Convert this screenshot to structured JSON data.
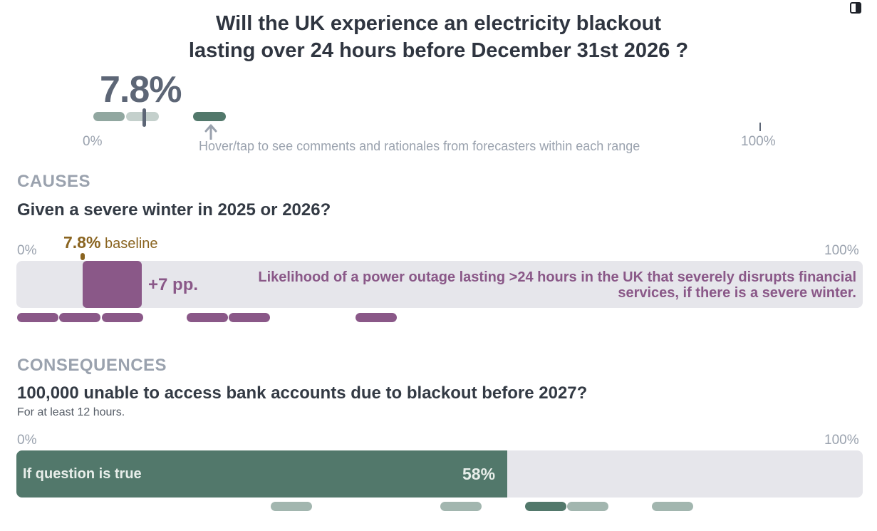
{
  "header": {
    "title_line1": "Will the UK experience an electricity blackout",
    "title_line2": "lasting over 24 hours before December 31st 2026 ?"
  },
  "forecast": {
    "probability_label": "7.8%",
    "probability": 0.078,
    "axis_min": "0%",
    "axis_max": "100%",
    "hint": "Hover/tap to see comments and rationales from forecasters within each range"
  },
  "causes": {
    "section_title": "CAUSES",
    "question": "Given a severe winter in 2025 or 2026?",
    "axis_min": "0%",
    "axis_max": "100%",
    "baseline_value": "7.8%",
    "baseline_word": "baseline",
    "delta_label": "+7 pp.",
    "description_line1": "Likelihood of a power outage lasting >24 hours in the UK that severely disrupts financial",
    "description_line2": "services, if there is a severe winter."
  },
  "consequences": {
    "section_title": "CONSEQUENCES",
    "question": "100,000 unable to access bank accounts due to blackout before 2027?",
    "subtitle": "For at least 12 hours.",
    "axis_min": "0%",
    "axis_max": "100%",
    "bar_label": "If question is true",
    "bar_value_label": "58%",
    "bar_value": 0.58
  },
  "colors": {
    "forecast_gray": "#5d6676",
    "forecast_green": "#52786b",
    "cause_purple": "#8a5888",
    "baseline_brown": "#8a6420"
  }
}
